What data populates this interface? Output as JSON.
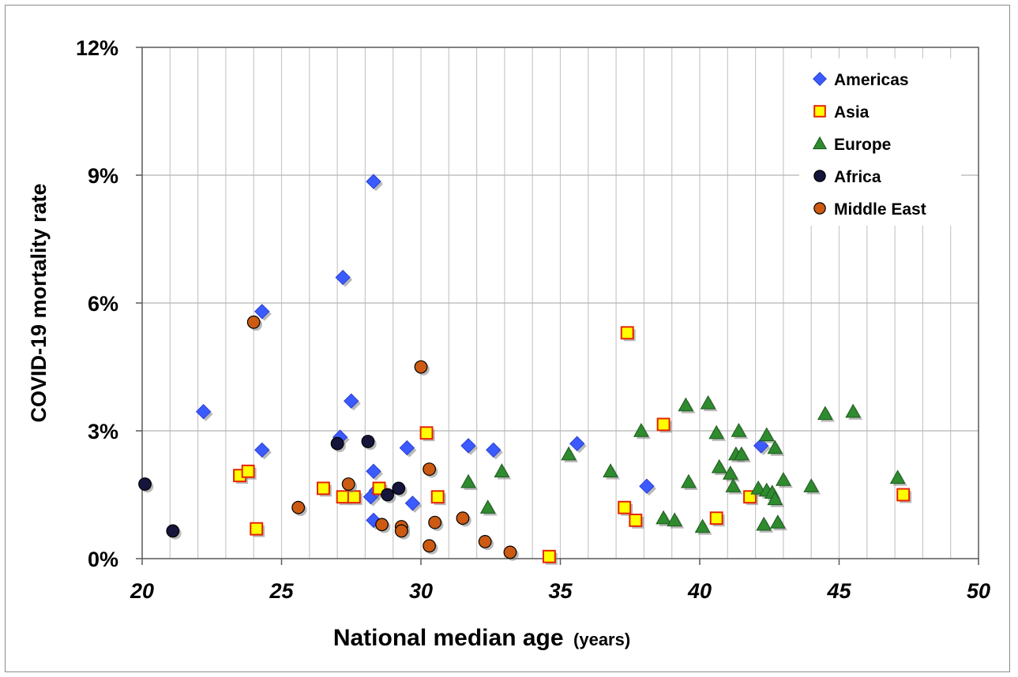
{
  "chart_data": {
    "type": "scatter",
    "title": "",
    "xlabel": "National median age",
    "xlabel_unit": "(years)",
    "ylabel": "COVID-19 mortality rate",
    "xlim": [
      20,
      50
    ],
    "ylim": [
      0,
      12
    ],
    "x_ticks": [
      20,
      25,
      30,
      35,
      40,
      45,
      50
    ],
    "y_ticks": [
      0,
      3,
      6,
      9,
      12
    ],
    "y_tick_labels": [
      "0%",
      "3%",
      "6%",
      "9%",
      "12%"
    ],
    "grid": true,
    "legend_position": "top-right",
    "series": [
      {
        "name": "Americas",
        "marker": "diamond",
        "color": "#3b5bff",
        "points": [
          [
            22.2,
            3.45
          ],
          [
            24.3,
            5.8
          ],
          [
            24.3,
            2.55
          ],
          [
            27.1,
            2.85
          ],
          [
            27.2,
            6.6
          ],
          [
            27.5,
            3.7
          ],
          [
            28.2,
            1.45
          ],
          [
            28.3,
            2.05
          ],
          [
            28.3,
            0.9
          ],
          [
            28.3,
            8.85
          ],
          [
            28.4,
            1.6
          ],
          [
            29.5,
            2.6
          ],
          [
            29.7,
            1.3
          ],
          [
            31.7,
            2.65
          ],
          [
            32.6,
            2.55
          ],
          [
            35.6,
            2.7
          ],
          [
            38.1,
            1.7
          ],
          [
            42.2,
            2.65
          ]
        ]
      },
      {
        "name": "Asia",
        "marker": "square",
        "color": "#ffff00",
        "edge": "#e62200",
        "points": [
          [
            23.5,
            1.95
          ],
          [
            23.8,
            2.05
          ],
          [
            24.1,
            0.7
          ],
          [
            26.5,
            1.65
          ],
          [
            27.2,
            1.45
          ],
          [
            27.6,
            1.45
          ],
          [
            28.5,
            1.65
          ],
          [
            30.2,
            2.95
          ],
          [
            30.6,
            1.45
          ],
          [
            34.6,
            0.05
          ],
          [
            37.3,
            1.2
          ],
          [
            37.4,
            5.3
          ],
          [
            37.7,
            0.9
          ],
          [
            38.7,
            3.15
          ],
          [
            40.6,
            0.95
          ],
          [
            41.8,
            1.45
          ],
          [
            47.3,
            1.5
          ]
        ]
      },
      {
        "name": "Europe",
        "marker": "triangle",
        "color": "#2e8b2e",
        "points": [
          [
            31.7,
            1.8
          ],
          [
            32.4,
            1.2
          ],
          [
            32.9,
            2.05
          ],
          [
            35.3,
            2.45
          ],
          [
            36.8,
            2.05
          ],
          [
            37.9,
            3.0
          ],
          [
            38.7,
            0.95
          ],
          [
            39.1,
            0.9
          ],
          [
            39.5,
            3.6
          ],
          [
            39.6,
            1.8
          ],
          [
            40.1,
            0.75
          ],
          [
            40.3,
            3.65
          ],
          [
            40.6,
            2.95
          ],
          [
            40.7,
            2.15
          ],
          [
            41.1,
            2.0
          ],
          [
            41.2,
            1.7
          ],
          [
            41.3,
            2.45
          ],
          [
            41.4,
            3.0
          ],
          [
            41.5,
            2.45
          ],
          [
            42.1,
            1.65
          ],
          [
            42.3,
            0.8
          ],
          [
            42.4,
            2.9
          ],
          [
            42.4,
            1.6
          ],
          [
            42.6,
            1.55
          ],
          [
            42.7,
            1.4
          ],
          [
            42.7,
            2.6
          ],
          [
            42.8,
            0.85
          ],
          [
            43.0,
            1.85
          ],
          [
            44.0,
            1.7
          ],
          [
            44.5,
            3.4
          ],
          [
            45.5,
            3.45
          ],
          [
            47.1,
            1.9
          ]
        ]
      },
      {
        "name": "Africa",
        "marker": "circle",
        "color": "#15143a",
        "points": [
          [
            20.1,
            1.75
          ],
          [
            21.1,
            0.65
          ],
          [
            27.0,
            2.7
          ],
          [
            28.1,
            2.75
          ],
          [
            28.8,
            1.5
          ],
          [
            29.2,
            1.65
          ]
        ]
      },
      {
        "name": "Middle East",
        "marker": "circle",
        "color": "#cc5a12",
        "points": [
          [
            24.0,
            5.55
          ],
          [
            25.6,
            1.2
          ],
          [
            27.4,
            1.75
          ],
          [
            28.6,
            0.8
          ],
          [
            29.3,
            0.75
          ],
          [
            29.3,
            0.65
          ],
          [
            30.0,
            4.5
          ],
          [
            30.3,
            0.3
          ],
          [
            30.3,
            2.1
          ],
          [
            30.5,
            0.85
          ],
          [
            31.5,
            0.95
          ],
          [
            32.3,
            0.4
          ],
          [
            33.2,
            0.15
          ]
        ]
      }
    ]
  }
}
